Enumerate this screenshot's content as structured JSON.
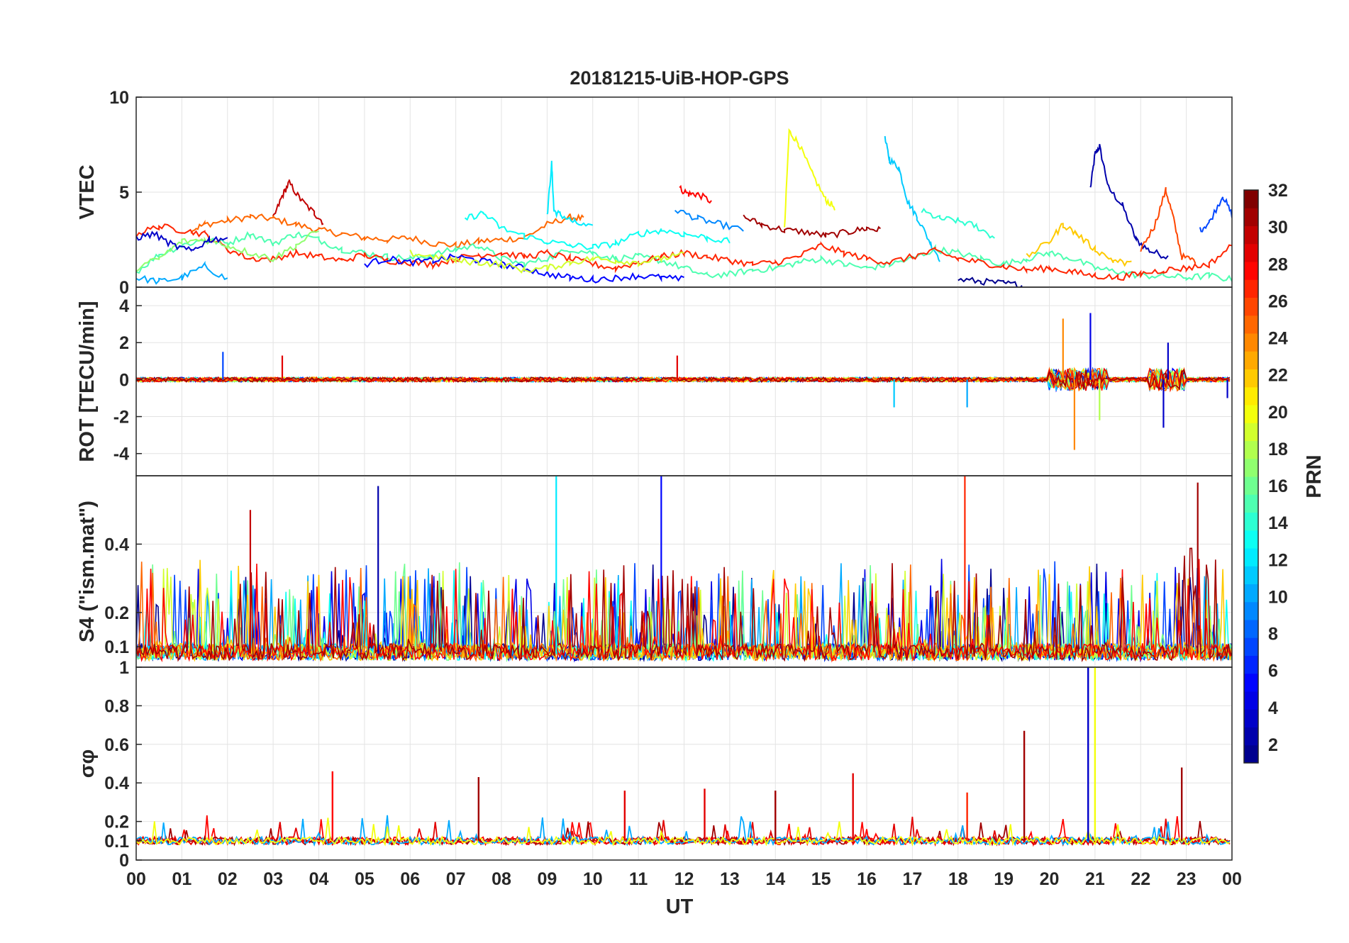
{
  "chart_data": {
    "type": "line",
    "title": "20181215-UiB-HOP-GPS",
    "xlabel": "UT",
    "x_ticks": [
      "00",
      "01",
      "02",
      "03",
      "04",
      "05",
      "06",
      "07",
      "08",
      "09",
      "10",
      "11",
      "12",
      "13",
      "14",
      "15",
      "16",
      "17",
      "18",
      "19",
      "20",
      "21",
      "22",
      "23",
      "00"
    ],
    "xlim_hours": [
      0,
      24
    ],
    "grid": true,
    "colorbar": {
      "label": "PRN",
      "range": [
        1,
        32
      ],
      "ticks": [
        "2",
        "4",
        "6",
        "8",
        "10",
        "12",
        "14",
        "16",
        "18",
        "20",
        "22",
        "24",
        "26",
        "28",
        "30",
        "32"
      ],
      "colormap": "jet",
      "colors": [
        "#00008f",
        "#0000ff",
        "#0080ff",
        "#00ffff",
        "#80ff80",
        "#ffff00",
        "#ff8000",
        "#ff0000",
        "#800000"
      ]
    },
    "panels": [
      {
        "id": "vtec",
        "ylabel": "VTEC",
        "ylim": [
          0,
          10
        ],
        "y_ticks": [
          "0",
          "5",
          "10"
        ],
        "series": [
          {
            "prn": 2,
            "x": [
              20.9,
              21.0,
              21.1,
              21.3,
              21.6,
              21.9,
              22.2,
              22.6
            ],
            "y": [
              5.2,
              7.0,
              7.4,
              5.2,
              4.3,
              2.5,
              1.9,
              1.6
            ]
          },
          {
            "prn": 25,
            "x": [
              1.2,
              1.5,
              2.0,
              2.5,
              3.0,
              3.5,
              4.0,
              4.5,
              5.0,
              5.5,
              6.0,
              6.5,
              7.0,
              7.5,
              8.0,
              8.5,
              9.0,
              9.5,
              9.8
            ],
            "y": [
              3.0,
              3.3,
              3.5,
              3.7,
              3.6,
              3.3,
              3.0,
              2.8,
              2.6,
              2.5,
              2.6,
              2.3,
              2.2,
              2.4,
              2.5,
              2.6,
              3.3,
              3.7,
              3.6
            ]
          },
          {
            "prn": 30,
            "x": [
              3.0,
              3.2,
              3.35,
              3.6,
              3.9,
              4.1
            ],
            "y": [
              3.6,
              4.8,
              5.5,
              4.6,
              3.9,
              3.4
            ]
          },
          {
            "prn": 28,
            "x": [
              11.9,
              12.1,
              12.3,
              12.6
            ],
            "y": [
              5.2,
              4.9,
              4.9,
              4.5
            ]
          },
          {
            "prn": 20,
            "x": [
              14.2,
              14.3,
              14.5,
              14.8,
              15.1,
              15.3
            ],
            "y": [
              3.0,
              8.2,
              7.6,
              6.0,
              4.6,
              4.2
            ]
          },
          {
            "prn": 11,
            "x": [
              16.4,
              16.5,
              16.7,
              16.9,
              17.1,
              17.4,
              17.6
            ],
            "y": [
              7.8,
              6.7,
              6.3,
              4.5,
              3.7,
              2.3,
              1.5
            ]
          },
          {
            "prn": 12,
            "x": [
              9.0,
              9.1,
              9.15,
              9.3,
              9.6,
              10.0
            ],
            "y": [
              3.7,
              6.5,
              4.0,
              3.8,
              3.4,
              3.1
            ]
          },
          {
            "prn": 26,
            "x": [
              22.0,
              22.3,
              22.55,
              22.7,
              22.9,
              23.2
            ],
            "y": [
              2.0,
              3.2,
              5.1,
              3.8,
              1.6,
              1.4
            ]
          },
          {
            "prn": 7,
            "x": [
              23.3,
              23.5,
              23.8,
              24.0
            ],
            "y": [
              3.0,
              3.4,
              4.8,
              3.8
            ]
          },
          {
            "prn": 31,
            "x": [
              13.3,
              13.7,
              14.2,
              14.7,
              15.1,
              15.6,
              16.0,
              16.3
            ],
            "y": [
              3.7,
              3.3,
              3.0,
              2.9,
              2.7,
              2.9,
              3.1,
              3.0
            ]
          },
          {
            "prn": 9,
            "x": [
              11.8,
              12.3,
              12.8,
              13.3
            ],
            "y": [
              4.1,
              3.6,
              3.3,
              3.0
            ]
          },
          {
            "prn": 14,
            "x": [
              17.2,
              17.6,
              18.0,
              18.4,
              18.8
            ],
            "y": [
              4.0,
              3.6,
              3.5,
              3.2,
              2.6
            ]
          },
          {
            "prn": 10,
            "x": [
              0.0,
              0.5,
              1.0,
              1.5,
              2.0
            ],
            "y": [
              0.5,
              0.3,
              0.5,
              1.1,
              0.4
            ]
          },
          {
            "prn": 1,
            "x": [
              18.0,
              18.5,
              19.0,
              19.4
            ],
            "y": [
              0.4,
              0.3,
              0.2,
              0.1
            ]
          },
          {
            "prn": 15,
            "x": [
              0.0,
              0.5,
              1.0,
              1.5,
              2.0,
              2.5,
              3.0,
              3.5,
              4.0,
              4.5,
              5.0,
              5.5,
              6.0,
              6.5,
              7.0,
              7.5,
              8.0,
              8.5,
              9.0,
              9.5,
              10.0,
              10.5,
              11.0,
              11.5,
              12.0,
              12.5,
              13.0,
              13.5,
              14.0,
              14.5,
              15.0,
              15.5,
              16.0,
              16.5,
              17.0,
              17.5,
              18.0,
              18.5,
              19.0,
              19.5,
              20.0,
              20.5,
              21.0,
              21.5,
              22.0,
              22.5,
              23.0,
              23.5,
              24.0
            ],
            "y": [
              0.8,
              1.7,
              2.2,
              2.5,
              2.3,
              2.8,
              2.3,
              2.8,
              2.5,
              2.0,
              1.8,
              1.6,
              1.5,
              1.7,
              2.0,
              2.2,
              1.5,
              1.2,
              1.5,
              2.0,
              1.8,
              1.5,
              1.6,
              1.4,
              1.0,
              0.6,
              0.7,
              0.9,
              1.0,
              1.3,
              1.5,
              1.2,
              1.0,
              1.2,
              1.5,
              2.0,
              1.8,
              1.5,
              1.2,
              1.5,
              1.8,
              1.5,
              1.0,
              0.8,
              0.6,
              0.6,
              0.5,
              0.6,
              0.4
            ]
          },
          {
            "prn": 27,
            "x": [
              0.0,
              0.5,
              1.0,
              1.5,
              2.0,
              2.5,
              3.0,
              3.5,
              4.0,
              4.5,
              5.0,
              5.5,
              6.0,
              6.5,
              7.0,
              7.5,
              8.0,
              8.5,
              9.0,
              9.5,
              10.0,
              10.5,
              11.0,
              11.5,
              12.0,
              12.5,
              13.0,
              13.5,
              14.0,
              14.5,
              15.0,
              15.5,
              16.0,
              16.5,
              17.0,
              17.5,
              18.0,
              18.5,
              19.0,
              19.5,
              20.0,
              20.5,
              21.0,
              21.5,
              22.0,
              22.5,
              23.0,
              23.5,
              24.0
            ],
            "y": [
              2.8,
              3.2,
              3.0,
              2.8,
              2.0,
              1.5,
              1.5,
              1.8,
              1.6,
              1.4,
              1.7,
              1.4,
              1.3,
              1.2,
              1.5,
              1.7,
              1.8,
              1.6,
              1.8,
              1.5,
              1.2,
              1.0,
              1.3,
              1.6,
              1.8,
              1.6,
              1.4,
              1.2,
              1.3,
              1.6,
              2.2,
              1.8,
              1.5,
              1.3,
              1.6,
              1.9,
              1.5,
              1.3,
              1.1,
              0.9,
              1.0,
              0.8,
              0.6,
              0.5,
              0.7,
              0.9,
              1.0,
              1.2,
              2.2
            ]
          },
          {
            "prn": 5,
            "x": [
              5.0,
              5.5,
              6.0,
              6.5,
              7.0,
              7.5,
              8.0,
              8.5,
              9.0,
              9.5,
              10.0,
              10.5,
              11.0,
              11.5,
              12.0
            ],
            "y": [
              1.2,
              1.5,
              1.3,
              1.4,
              1.6,
              1.4,
              1.2,
              1.0,
              0.7,
              0.5,
              0.4,
              0.5,
              0.6,
              0.5,
              0.4
            ]
          },
          {
            "prn": 19,
            "x": [
              6.0,
              6.5,
              7.0,
              7.5,
              8.0,
              8.5,
              9.0,
              9.5,
              10.0,
              10.5,
              11.0,
              11.5,
              12.0
            ],
            "y": [
              1.8,
              1.6,
              1.4,
              1.3,
              1.2,
              0.9,
              1.0,
              1.3,
              1.5,
              1.4,
              1.3,
              1.5,
              1.7
            ]
          },
          {
            "prn": 13,
            "x": [
              7.2,
              7.6,
              8.0,
              8.5,
              9.0,
              9.5,
              10.0,
              10.5,
              11.0,
              11.5,
              12.0,
              12.5,
              13.0
            ],
            "y": [
              3.6,
              3.9,
              3.1,
              2.7,
              2.4,
              2.2,
              2.1,
              2.3,
              2.8,
              3.0,
              2.8,
              2.6,
              2.4
            ]
          },
          {
            "prn": 22,
            "x": [
              19.5,
              20.0,
              20.3,
              20.6,
              21.0,
              21.4,
              21.8
            ],
            "y": [
              1.6,
              2.4,
              3.3,
              2.8,
              2.0,
              1.4,
              1.2
            ]
          },
          {
            "prn": 17,
            "x": [
              0.0,
              0.5,
              1.0,
              1.5,
              2.0,
              2.5,
              3.0,
              3.5,
              4.0
            ],
            "y": [
              1.0,
              1.5,
              2.4,
              2.5,
              2.2,
              1.8,
              1.5,
              2.2,
              3.0
            ]
          },
          {
            "prn": 3,
            "x": [
              0.0,
              0.4,
              0.8,
              1.2,
              1.6,
              2.0
            ],
            "y": [
              2.6,
              2.8,
              2.2,
              1.9,
              2.5,
              2.6
            ]
          }
        ]
      },
      {
        "id": "rot",
        "ylabel": "ROT [TECU/min]",
        "ylim": [
          -5.2,
          5
        ],
        "y_ticks": [
          "-4",
          "-2",
          "0",
          "2",
          "4"
        ],
        "spikes": [
          {
            "prn": 7,
            "x": 1.9,
            "y": 1.5
          },
          {
            "prn": 29,
            "x": 3.2,
            "y": 1.3
          },
          {
            "prn": 29,
            "x": 11.85,
            "y": 1.3
          },
          {
            "prn": 11,
            "x": 16.6,
            "y": -1.5
          },
          {
            "prn": 10,
            "x": 18.2,
            "y": -1.5
          },
          {
            "prn": 24,
            "x": 20.3,
            "y": 3.3
          },
          {
            "prn": 24,
            "x": 20.55,
            "y": -3.8
          },
          {
            "prn": 4,
            "x": 20.9,
            "y": 3.6
          },
          {
            "prn": 18,
            "x": 21.1,
            "y": -2.2
          },
          {
            "prn": 3,
            "x": 22.5,
            "y": -2.6
          },
          {
            "prn": 3,
            "x": 22.6,
            "y": 2.0
          },
          {
            "prn": 3,
            "x": 23.9,
            "y": -1.0
          }
        ]
      },
      {
        "id": "s4",
        "ylabel": "S4 (\"ism.mat\")",
        "ylim": [
          0.04,
          0.6
        ],
        "y_ticks": [
          "0.1",
          "0.2",
          "0.4"
        ],
        "active_windows": [
          {
            "prn": 30,
            "start": 1.5,
            "end": 3.5,
            "peak": 0.5
          },
          {
            "prn": 2,
            "start": 5.0,
            "end": 5.6,
            "peak": 0.57
          },
          {
            "prn": 12,
            "start": 8.9,
            "end": 9.5,
            "peak": 0.6
          },
          {
            "prn": 5,
            "start": 11.0,
            "end": 12.0,
            "peak": 0.6
          },
          {
            "prn": 27,
            "start": 18.0,
            "end": 18.3,
            "peak": 0.6
          },
          {
            "prn": 31,
            "start": 22.8,
            "end": 23.7,
            "peak": 0.58
          }
        ]
      },
      {
        "id": "sigma_phi",
        "ylabel": "σφ",
        "ylim": [
          0,
          1
        ],
        "y_ticks": [
          "0",
          "0.1",
          "0.2",
          "0.4",
          "0.6",
          "0.8",
          "1"
        ],
        "baseline": 0.1,
        "spikes": [
          {
            "prn": 28,
            "x": 4.3,
            "y": 0.46
          },
          {
            "prn": 31,
            "x": 7.5,
            "y": 0.43
          },
          {
            "prn": 29,
            "x": 10.7,
            "y": 0.36
          },
          {
            "prn": 29,
            "x": 12.45,
            "y": 0.37
          },
          {
            "prn": 31,
            "x": 14.0,
            "y": 0.36
          },
          {
            "prn": 29,
            "x": 15.7,
            "y": 0.45
          },
          {
            "prn": 27,
            "x": 18.2,
            "y": 0.35
          },
          {
            "prn": 31,
            "x": 19.45,
            "y": 0.67
          },
          {
            "prn": 3,
            "x": 20.85,
            "y": 1.0
          },
          {
            "prn": 20,
            "x": 21.0,
            "y": 1.0
          },
          {
            "prn": 31,
            "x": 22.9,
            "y": 0.48
          }
        ]
      }
    ]
  }
}
